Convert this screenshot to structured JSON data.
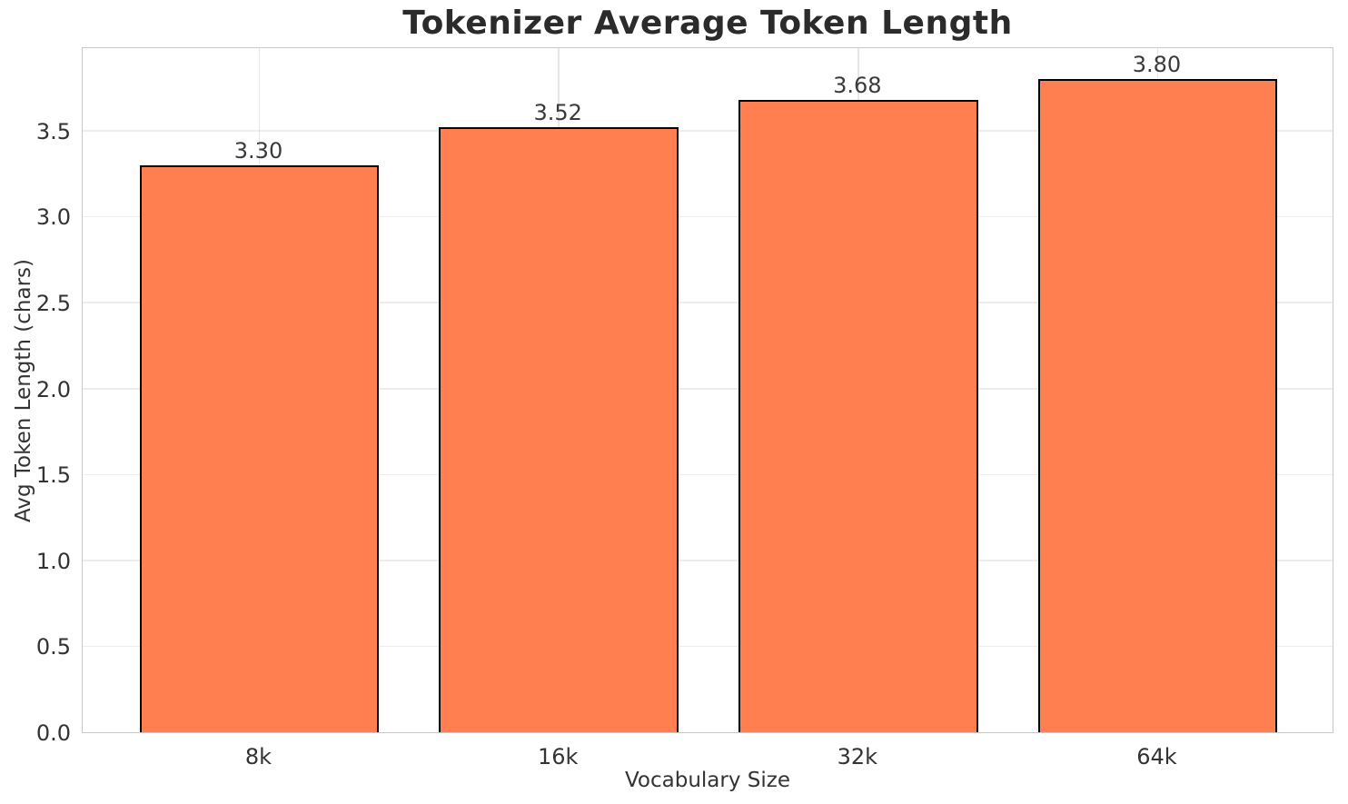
{
  "chart_data": {
    "type": "bar",
    "title": "Tokenizer Average Token Length",
    "xlabel": "Vocabulary Size",
    "ylabel": "Avg Token Length (chars)",
    "categories": [
      "8k",
      "16k",
      "32k",
      "64k"
    ],
    "values": [
      3.3,
      3.52,
      3.68,
      3.8
    ],
    "value_labels": [
      "3.30",
      "3.52",
      "3.68",
      "3.80"
    ],
    "ytick_labels": [
      "0.0",
      "0.5",
      "1.0",
      "1.5",
      "2.0",
      "2.5",
      "3.0",
      "3.5"
    ],
    "ylim": [
      0,
      3.99
    ],
    "grid": "both",
    "legend": null,
    "colors": {
      "bar_fill": "#FF7F50",
      "bar_edge": "#000000",
      "grid_horizontal": "#ededed",
      "grid_vertical": "#e6e6e6",
      "spine": "#c9c9c9",
      "tick_text": "#333333",
      "title_text": "#2b2b2b",
      "background": "#ffffff"
    }
  }
}
